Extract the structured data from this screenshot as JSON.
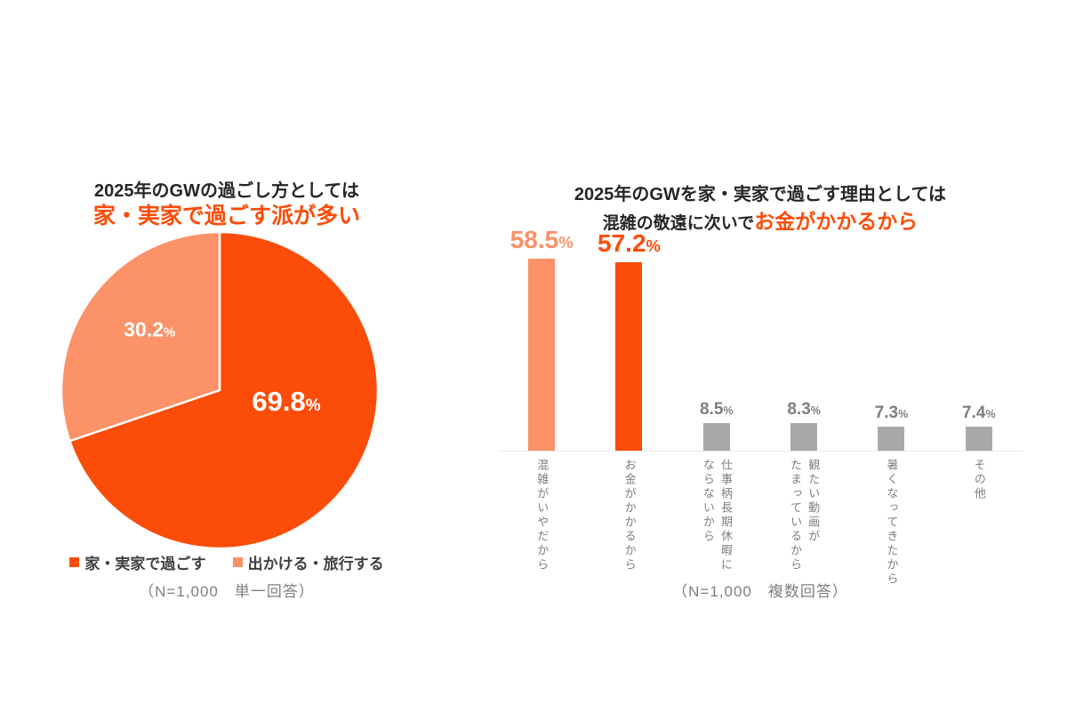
{
  "colors": {
    "orange": "#fb4d09",
    "light_orange": "#fb9268",
    "gray_bar": "#a9a9a9",
    "gray_text": "#7f7f7f",
    "title_black": "#262626",
    "axis_line": "#e8e8e8"
  },
  "chart_data": [
    {
      "type": "pie",
      "title_line1": "2025年のGWの過ごし方としては",
      "title_line2": "家・実家で過ごす派が多い",
      "labels": [
        "家・実家で過ごす",
        "出かける・旅行する"
      ],
      "values": [
        69.8,
        30.2
      ],
      "value_unit": "%",
      "colors": [
        "#fb4d09",
        "#fb9268"
      ],
      "legend_position": "bottom",
      "start_angle_deg": -90,
      "direction": "clockwise",
      "note": "（N=1,000　単一回答）"
    },
    {
      "type": "bar",
      "title_line1": "2025年のGWを家・実家で過ごす理由としては",
      "title_line2_black": "混雑の敬遠に次いで",
      "title_line2_orange": "お金がかかるから",
      "categories": [
        "混雑がいやだから",
        "お金がかかるから",
        "仕事柄長期休暇に\nならないから",
        "観たい動画が\nたまっているから",
        "暑くなってきたから",
        "その他"
      ],
      "values": [
        58.5,
        57.2,
        8.5,
        8.3,
        7.3,
        7.4
      ],
      "value_unit": "%",
      "bar_colors": [
        "#fb9268",
        "#fb4d09",
        "#a9a9a9",
        "#a9a9a9",
        "#a9a9a9",
        "#a9a9a9"
      ],
      "emphasized": [
        true,
        true,
        false,
        false,
        false,
        false
      ],
      "xlabel": "",
      "ylabel": "",
      "ylim": [
        0,
        62
      ],
      "grid": false,
      "note": "（N=1,000　複数回答）"
    }
  ]
}
